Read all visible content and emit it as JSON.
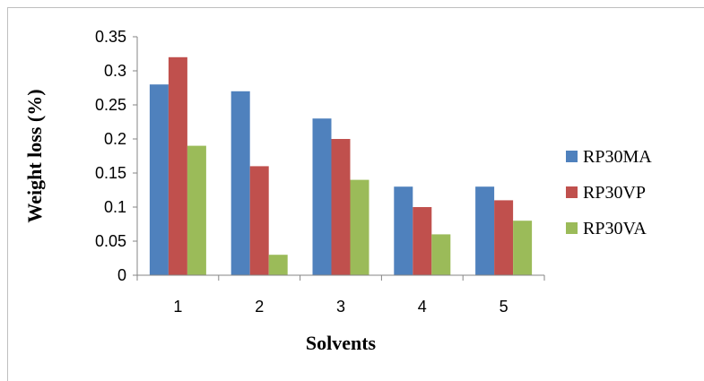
{
  "chart_data": {
    "type": "bar",
    "categories": [
      "1",
      "2",
      "3",
      "4",
      "5"
    ],
    "series": [
      {
        "name": "RP30MA",
        "values": [
          0.28,
          0.27,
          0.23,
          0.13,
          0.13
        ],
        "color": "#4f81bd"
      },
      {
        "name": "RP30VP",
        "values": [
          0.32,
          0.16,
          0.2,
          0.1,
          0.11
        ],
        "color": "#c0504d"
      },
      {
        "name": "RP30VA",
        "values": [
          0.19,
          0.03,
          0.14,
          0.06,
          0.08
        ],
        "color": "#9bbb59"
      }
    ],
    "xlabel": "Solvents",
    "ylabel": "Weight loss (%)",
    "ylim": [
      0,
      0.35
    ],
    "yticks": [
      "0",
      "0.05",
      "0.1",
      "0.15",
      "0.2",
      "0.25",
      "0.3",
      "0.35"
    ],
    "grid": false,
    "legend_position": "right"
  }
}
